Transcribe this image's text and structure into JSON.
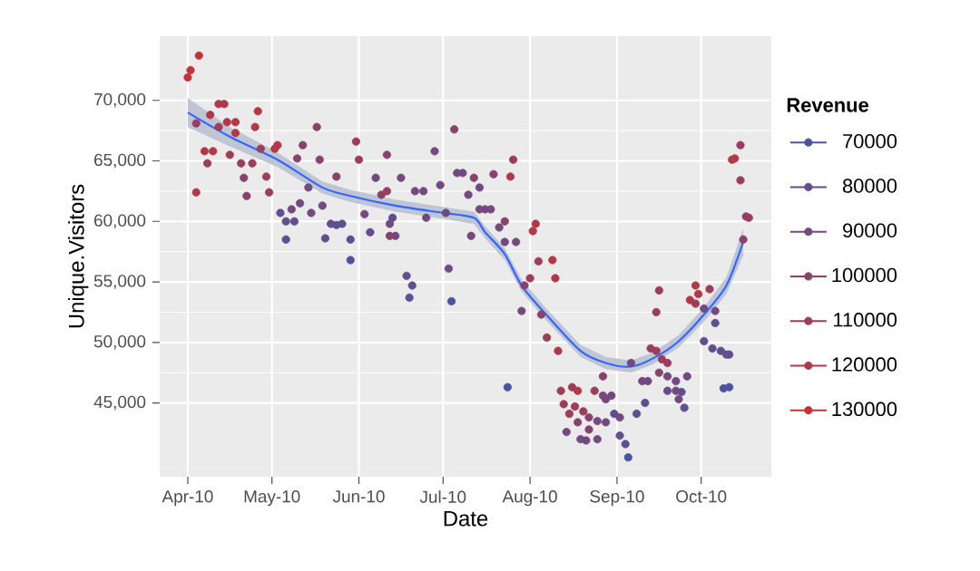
{
  "chart_data": {
    "type": "scatter",
    "xlabel": "Date",
    "ylabel": "Unique.Visitors",
    "legend_title": "Revenue",
    "legend": "right",
    "grid": true,
    "marker": "circle",
    "xlim": [
      "2010-03-22",
      "2010-10-26"
    ],
    "xticks": [
      {
        "value": "2010-04-01",
        "label": "Apr-10"
      },
      {
        "value": "2010-05-01",
        "label": "May-10"
      },
      {
        "value": "2010-06-01",
        "label": "Jun-10"
      },
      {
        "value": "2010-07-01",
        "label": "Jul-10"
      },
      {
        "value": "2010-08-01",
        "label": "Aug-10"
      },
      {
        "value": "2010-09-01",
        "label": "Sep-10"
      },
      {
        "value": "2010-10-01",
        "label": "Oct-10"
      }
    ],
    "ylim": [
      38900,
      75300
    ],
    "yticks": [
      {
        "value": 45000,
        "label": "45,000"
      },
      {
        "value": 50000,
        "label": "50,000"
      },
      {
        "value": 55000,
        "label": "55,000"
      },
      {
        "value": 60000,
        "label": "60,000"
      },
      {
        "value": 65000,
        "label": "65,000"
      },
      {
        "value": 70000,
        "label": "70,000"
      }
    ],
    "series": [
      {
        "name": "70000",
        "color": "#4c54a0",
        "x": [
          "2010-05-29",
          "2010-07-04",
          "2010-07-24",
          "2010-09-05",
          "2010-10-09",
          "2010-10-11"
        ],
        "values": [
          56800,
          53400,
          46300,
          40500,
          46200,
          46300
        ]
      },
      {
        "name": "80000",
        "color": "#604e8f",
        "x": [
          "2010-05-04",
          "2010-05-06",
          "2010-05-06",
          "2010-05-09",
          "2010-05-20",
          "2010-05-22",
          "2010-05-24",
          "2010-05-26",
          "2010-05-29",
          "2010-06-05",
          "2010-06-13",
          "2010-06-18",
          "2010-06-20",
          "2010-06-19",
          "2010-08-31",
          "2010-09-02",
          "2010-09-04",
          "2010-09-08",
          "2010-09-11",
          "2010-09-19",
          "2010-09-24",
          "2010-09-25",
          "2010-10-06",
          "2010-10-02",
          "2010-10-05",
          "2010-10-08",
          "2010-10-10",
          "2010-10-11"
        ],
        "values": [
          60700,
          60000,
          58500,
          60000,
          58600,
          59800,
          59700,
          59800,
          58500,
          59100,
          60300,
          55500,
          54700,
          53700,
          44100,
          42300,
          41600,
          44100,
          45000,
          46000,
          45900,
          44600,
          51600,
          50100,
          49500,
          49300,
          49000,
          49000
        ]
      },
      {
        "name": "90000",
        "color": "#74497f",
        "x": [
          "2010-05-08",
          "2010-05-11",
          "2010-05-14",
          "2010-05-15",
          "2010-05-19",
          "2010-06-03",
          "2010-06-07",
          "2010-06-16",
          "2010-06-12",
          "2010-06-14",
          "2010-06-21",
          "2010-06-24",
          "2010-06-25",
          "2010-06-28",
          "2010-06-30",
          "2010-07-02",
          "2010-07-03",
          "2010-07-06",
          "2010-07-08",
          "2010-07-10",
          "2010-07-11",
          "2010-07-14",
          "2010-07-14",
          "2010-07-16",
          "2010-07-18",
          "2010-07-21",
          "2010-07-23",
          "2010-07-27",
          "2010-07-29",
          "2010-08-14",
          "2010-08-19",
          "2010-08-25",
          "2010-08-21",
          "2010-08-25",
          "2010-08-27",
          "2010-08-28",
          "2010-08-30",
          "2010-08-28",
          "2010-09-02",
          "2010-09-06",
          "2010-09-10",
          "2010-09-12",
          "2010-09-19",
          "2010-09-22",
          "2010-09-22",
          "2010-09-23",
          "2010-09-26",
          "2010-10-02",
          "2010-10-06"
        ],
        "values": [
          61000,
          61500,
          62800,
          60700,
          61300,
          60600,
          63600,
          63600,
          59800,
          58800,
          62500,
          62500,
          60300,
          65800,
          63000,
          60700,
          56100,
          64000,
          64000,
          62200,
          58800,
          62800,
          61000,
          61000,
          61000,
          59500,
          58300,
          58300,
          52600,
          42600,
          42000,
          43500,
          41900,
          42000,
          45600,
          45300,
          45600,
          43400,
          43800,
          48300,
          46800,
          46800,
          47200,
          46800,
          46000,
          45300,
          47200,
          52800,
          52600
        ]
      },
      {
        "name": "100000",
        "color": "#88436c",
        "x": [
          "2010-04-21",
          "2010-04-22",
          "2010-05-12",
          "2010-05-10",
          "2010-05-17",
          "2010-05-18",
          "2010-05-24",
          "2010-06-11",
          "2010-06-09",
          "2010-06-12",
          "2010-07-05",
          "2010-07-12",
          "2010-07-19",
          "2010-07-23",
          "2010-07-30",
          "2010-08-05",
          "2010-08-22",
          "2010-08-18",
          "2010-08-22",
          "2010-08-27",
          "2010-09-16",
          "2010-10-16",
          "2010-10-17"
        ],
        "values": [
          63600,
          62100,
          66300,
          65200,
          67800,
          65100,
          63700,
          65500,
          62200,
          58800,
          67600,
          63600,
          63900,
          60000,
          54700,
          52300,
          43800,
          43400,
          42800,
          47200,
          47500,
          58500,
          60400
        ]
      },
      {
        "name": "110000",
        "color": "#9c3d5b",
        "x": [
          "2010-04-04",
          "2010-04-08",
          "2010-04-12",
          "2010-04-16",
          "2010-04-20",
          "2010-04-24",
          "2010-04-27",
          "2010-04-29",
          "2010-04-30",
          "2010-05-31",
          "2010-06-01",
          "2010-06-11",
          "2010-07-26",
          "2010-08-04",
          "2010-08-01",
          "2010-08-07",
          "2010-08-12",
          "2010-08-16",
          "2010-08-13",
          "2010-08-15",
          "2010-08-17",
          "2010-08-20",
          "2010-08-24",
          "2010-09-13",
          "2010-09-15",
          "2010-09-17",
          "2010-09-19",
          "2010-09-16",
          "2010-09-15",
          "2010-09-29",
          "2010-10-04",
          "2010-10-18",
          "2010-10-15",
          "2010-10-15"
        ],
        "values": [
          68100,
          64800,
          67800,
          65500,
          64800,
          64800,
          66000,
          63700,
          62400,
          66600,
          65100,
          62500,
          65100,
          56700,
          55300,
          50400,
          46000,
          46300,
          44900,
          44100,
          44700,
          44300,
          46000,
          49500,
          49300,
          48600,
          48300,
          54300,
          52500,
          53200,
          54400,
          60300,
          66300,
          63400
        ]
      },
      {
        "name": "120000",
        "color": "#b03849",
        "x": [
          "2010-04-04",
          "2010-04-07",
          "2010-04-10",
          "2010-04-09",
          "2010-04-12",
          "2010-04-14",
          "2010-04-15",
          "2010-04-18",
          "2010-04-18",
          "2010-04-26",
          "2010-04-25",
          "2010-05-02",
          "2010-05-03",
          "2010-07-25",
          "2010-08-03",
          "2010-08-02",
          "2010-08-09",
          "2010-08-10",
          "2010-08-11",
          "2010-08-18",
          "2010-09-27",
          "2010-09-29",
          "2010-09-30",
          "2010-10-12",
          "2010-10-13"
        ],
        "values": [
          62400,
          65800,
          65800,
          68800,
          69700,
          69700,
          68200,
          68200,
          67300,
          69100,
          67800,
          66000,
          66300,
          63700,
          59800,
          59200,
          56800,
          55300,
          49300,
          46000,
          53500,
          54700,
          54000,
          65100,
          65200
        ]
      },
      {
        "name": "130000",
        "color": "#c43238",
        "x": [
          "2010-04-01",
          "2010-04-02",
          "2010-04-05"
        ],
        "values": [
          71900,
          72500,
          73700
        ]
      },
      {
        "type": "line",
        "marker": "none",
        "color": "#3366ff",
        "x": [
          "2010-04-01",
          "2010-04-16",
          "2010-05-03",
          "2010-05-19",
          "2010-05-29",
          "2010-06-14",
          "2010-07-01",
          "2010-07-12",
          "2010-07-16",
          "2010-07-23",
          "2010-07-29",
          "2010-08-06",
          "2010-08-19",
          "2010-08-28",
          "2010-09-06",
          "2010-09-14",
          "2010-09-23",
          "2010-10-02",
          "2010-10-10",
          "2010-10-16"
        ],
        "values": [
          69000,
          67000,
          65100,
          62800,
          62100,
          61300,
          60700,
          60300,
          59100,
          57300,
          54700,
          52500,
          49300,
          48300,
          48000,
          48700,
          50100,
          52300,
          54700,
          58300
        ],
        "lower": [
          67800,
          66200,
          64500,
          62300,
          61600,
          60800,
          60200,
          59800,
          58600,
          56800,
          54200,
          52000,
          48800,
          47800,
          47500,
          48200,
          49600,
          51700,
          54000,
          57200
        ],
        "upper": [
          70200,
          67800,
          65700,
          63300,
          62600,
          61800,
          61200,
          60800,
          59600,
          57800,
          55200,
          53000,
          49800,
          48800,
          48500,
          49200,
          50600,
          52900,
          55400,
          59400
        ]
      }
    ]
  }
}
